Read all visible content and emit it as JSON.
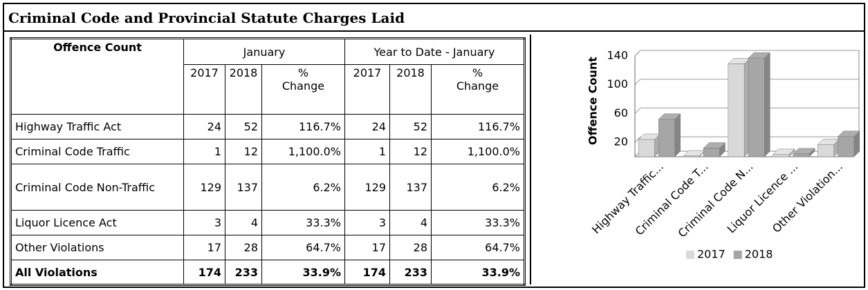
{
  "title": "Criminal Code and Provincial Statute Charges Laid",
  "table": {
    "header": [
      "Offence Count",
      "January",
      "Year to Date - January"
    ],
    "subheader": [
      "2017",
      "2018",
      "% Change",
      "2017",
      "2018",
      "% Change"
    ],
    "rows": [
      [
        "Highway Traffic Act",
        "24",
        "52",
        "116.7%",
        "24",
        "52",
        "116.7%"
      ],
      [
        "Criminal Code Traffic",
        "1",
        "12",
        "1,100.0%",
        "1",
        "12",
        "1,100.0%"
      ],
      [
        "Criminal Code Non-Traffic",
        "129",
        "137",
        "6.2%",
        "129",
        "137",
        "6.2%"
      ],
      [
        "Liquor Licence Act",
        "3",
        "4",
        "33.3%",
        "3",
        "4",
        "33.3%"
      ],
      [
        "Other Violations",
        "17",
        "28",
        "64.7%",
        "17",
        "28",
        "64.7%"
      ],
      [
        "All Violations",
        "174",
        "233",
        "33.9%",
        "174",
        "233",
        "33.9%"
      ]
    ]
  },
  "chart_data": {
    "type": "bar",
    "y_label": "Offence Count",
    "categories": [
      "Highway Traffic...",
      "Criminal Code T...",
      "Criminal Code N...",
      "Liquor Licence ...",
      "Other Violation..."
    ],
    "series": [
      {
        "name": "2017",
        "color": "#d9d9d9",
        "values": [
          24,
          1,
          129,
          3,
          17
        ]
      },
      {
        "name": "2018",
        "color": "#a6a6a6",
        "values": [
          52,
          12,
          137,
          4,
          28
        ]
      }
    ],
    "ylim": [
      0,
      140
    ],
    "yticks": [
      20,
      60,
      100,
      140
    ],
    "grid": true,
    "legend": "bottom"
  }
}
